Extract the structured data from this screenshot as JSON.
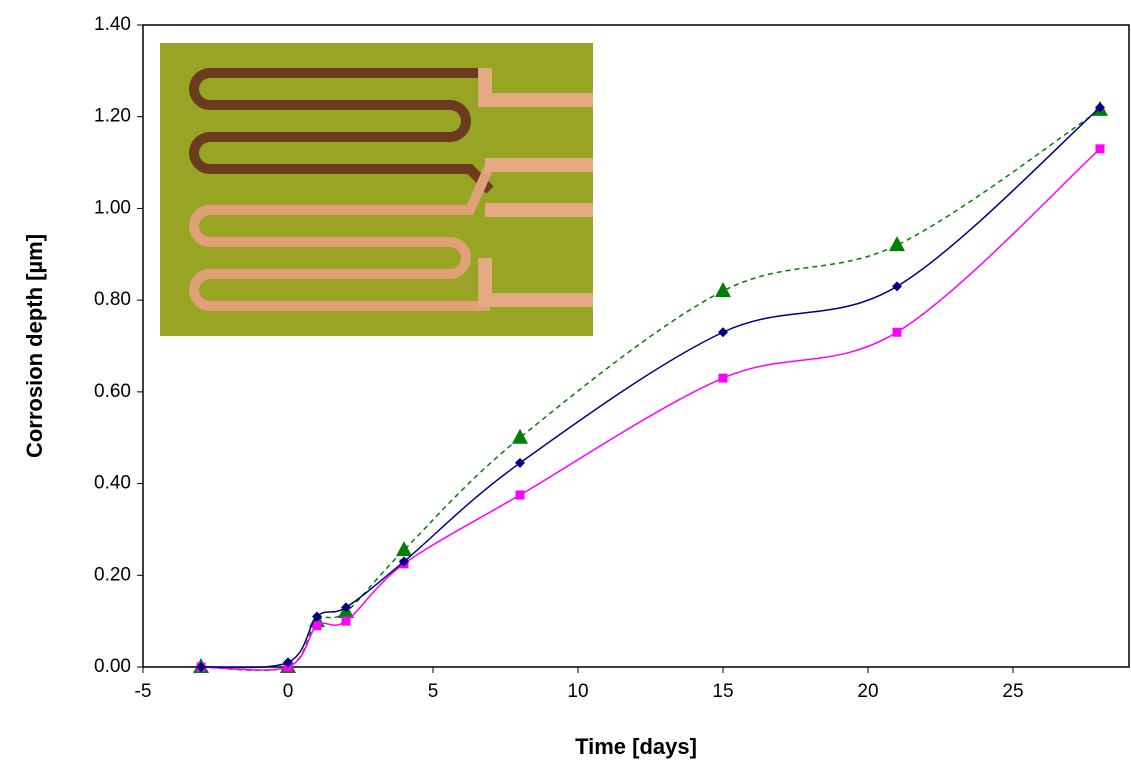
{
  "chart_data": {
    "type": "line",
    "x_label": "Time [days]",
    "y_label": "Corrosion depth [µm]",
    "x": [
      -3,
      0,
      1,
      2,
      4,
      8,
      15,
      21,
      28
    ],
    "series": [
      {
        "color": "#000080",
        "marker": "diamond",
        "dash": false,
        "values": [
          0,
          0.01,
          0.11,
          0.13,
          0.23,
          0.445,
          0.73,
          0.83,
          1.22
        ]
      },
      {
        "color": "#ff00ff",
        "marker": "square",
        "dash": false,
        "values": [
          0,
          0,
          0.09,
          0.1,
          0.225,
          0.375,
          0.63,
          0.73,
          1.13
        ]
      },
      {
        "color": "#008000",
        "marker": "triangle",
        "dash": true,
        "values": [
          0,
          0,
          0.1,
          0.12,
          0.255,
          0.5,
          0.82,
          0.92,
          1.215
        ]
      }
    ],
    "xlim": [
      -5,
      29
    ],
    "xticks": [
      -5,
      0,
      5,
      10,
      15,
      20,
      25
    ],
    "ylim": [
      0,
      1.4
    ],
    "yticks": [
      {
        "value": 0,
        "label": "0.00"
      },
      {
        "value": 0.2,
        "label": "0.20"
      },
      {
        "value": 0.4,
        "label": "0.40"
      },
      {
        "value": 0.6,
        "label": "0.60"
      },
      {
        "value": 0.8,
        "label": "0.80"
      },
      {
        "value": 1.0,
        "label": "1.00"
      },
      {
        "value": 1.2,
        "label": "1.20"
      },
      {
        "value": 1.4,
        "label": "1.40"
      }
    ],
    "grid": false
  }
}
